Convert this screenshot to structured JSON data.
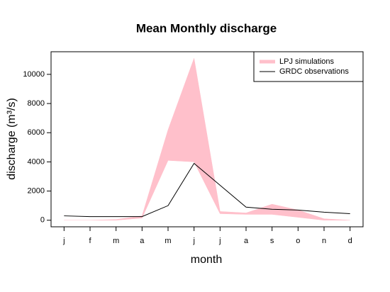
{
  "chart_data": {
    "type": "band-line",
    "title": "Mean Monthly discharge",
    "xlabel": "month",
    "ylabel": "discharge (m³/s)",
    "categories": [
      "j",
      "f",
      "m",
      "a",
      "m",
      "j",
      "j",
      "a",
      "s",
      "o",
      "n",
      "d"
    ],
    "series": [
      {
        "name": "LPJ simulations",
        "color": "#ffc0cb",
        "lower": [
          0,
          0,
          0,
          150,
          4100,
          4000,
          450,
          400,
          400,
          200,
          0,
          0
        ],
        "upper": [
          0,
          0,
          50,
          300,
          6200,
          11100,
          600,
          500,
          1100,
          700,
          100,
          0
        ]
      },
      {
        "name": "GRDC observations",
        "color": "#000000",
        "values": [
          300,
          250,
          250,
          250,
          1000,
          3900,
          2400,
          900,
          750,
          700,
          550,
          450
        ]
      }
    ],
    "ylim": [
      -450,
      11550
    ],
    "yticks": [
      0,
      2000,
      4000,
      6000,
      8000,
      10000
    ],
    "legend": "top-right"
  }
}
